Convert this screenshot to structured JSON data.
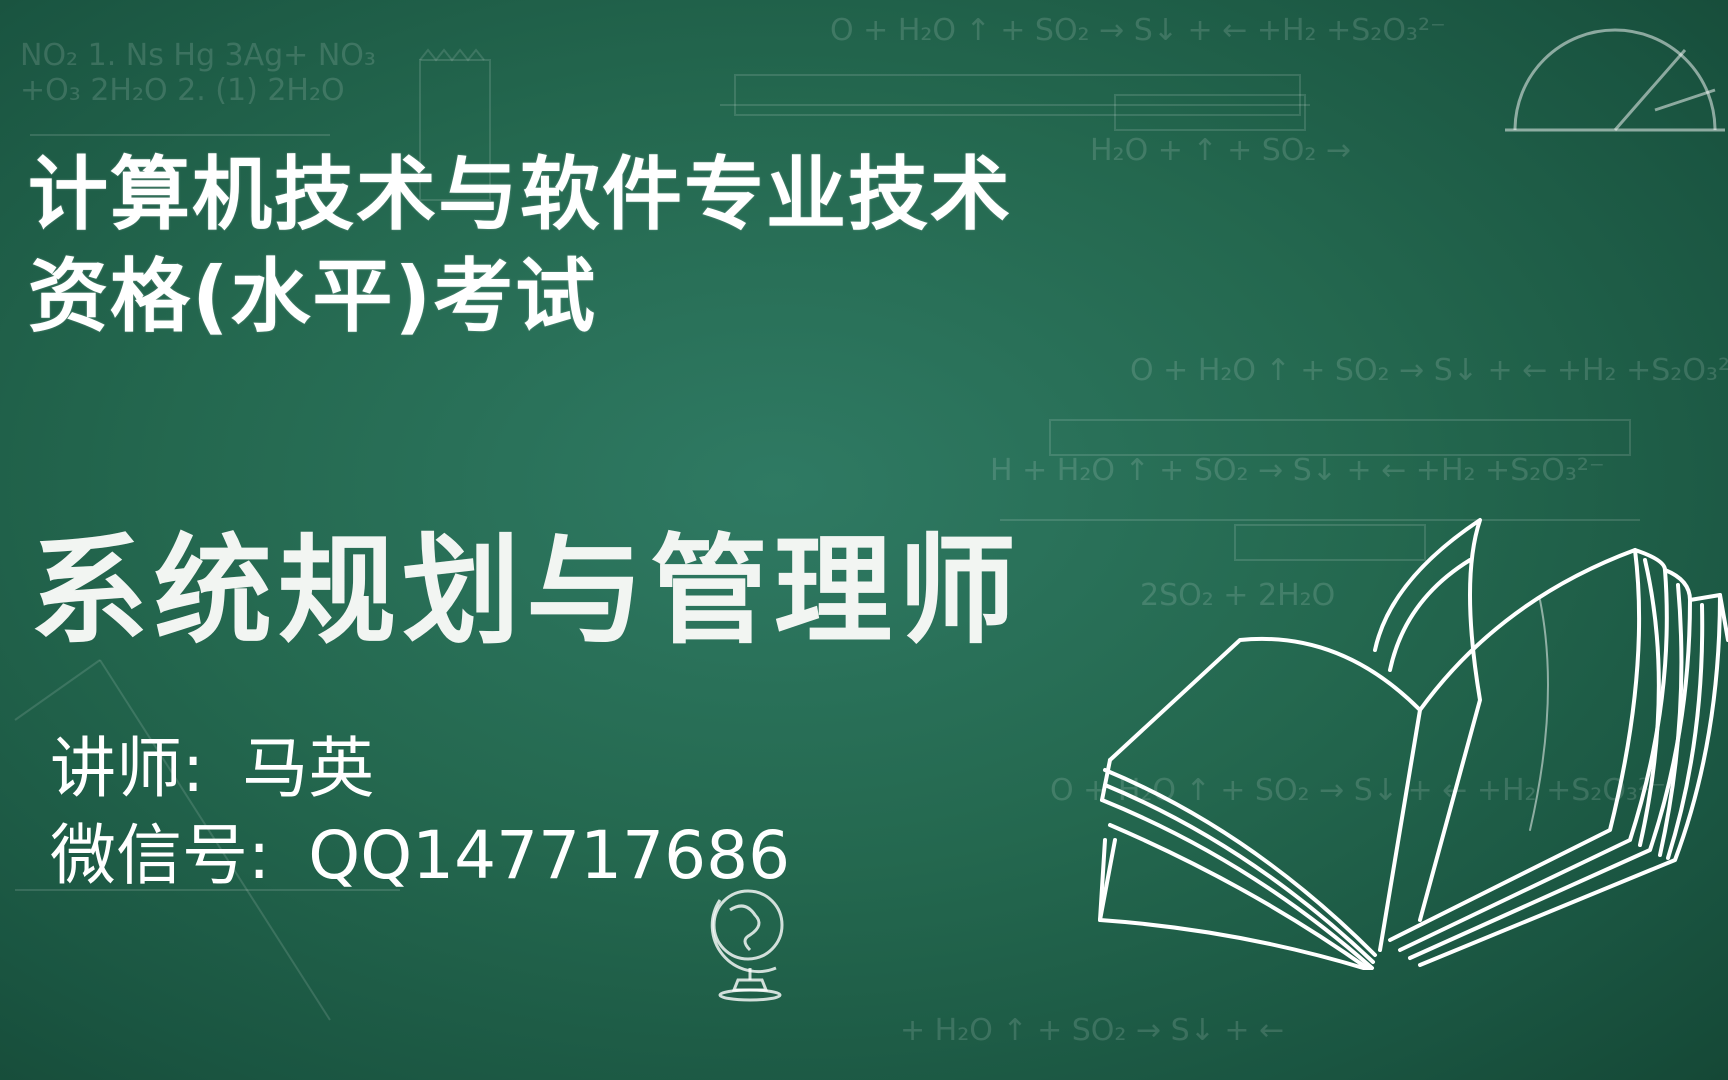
{
  "header": {
    "line1": "计算机技术与软件专业技术",
    "line2": "资格(水平)考试"
  },
  "main_title": "系统规划与管理师",
  "lecturer": {
    "label": "讲师:",
    "name": "马英"
  },
  "wechat": {
    "label": "微信号:",
    "value": "QQ147717686"
  },
  "background": {
    "color": "#24684f",
    "chalk": "#ffffff"
  },
  "decorations": [
    "open-book-icon",
    "globe-icon",
    "protractor-icon",
    "pencil-icon"
  ]
}
